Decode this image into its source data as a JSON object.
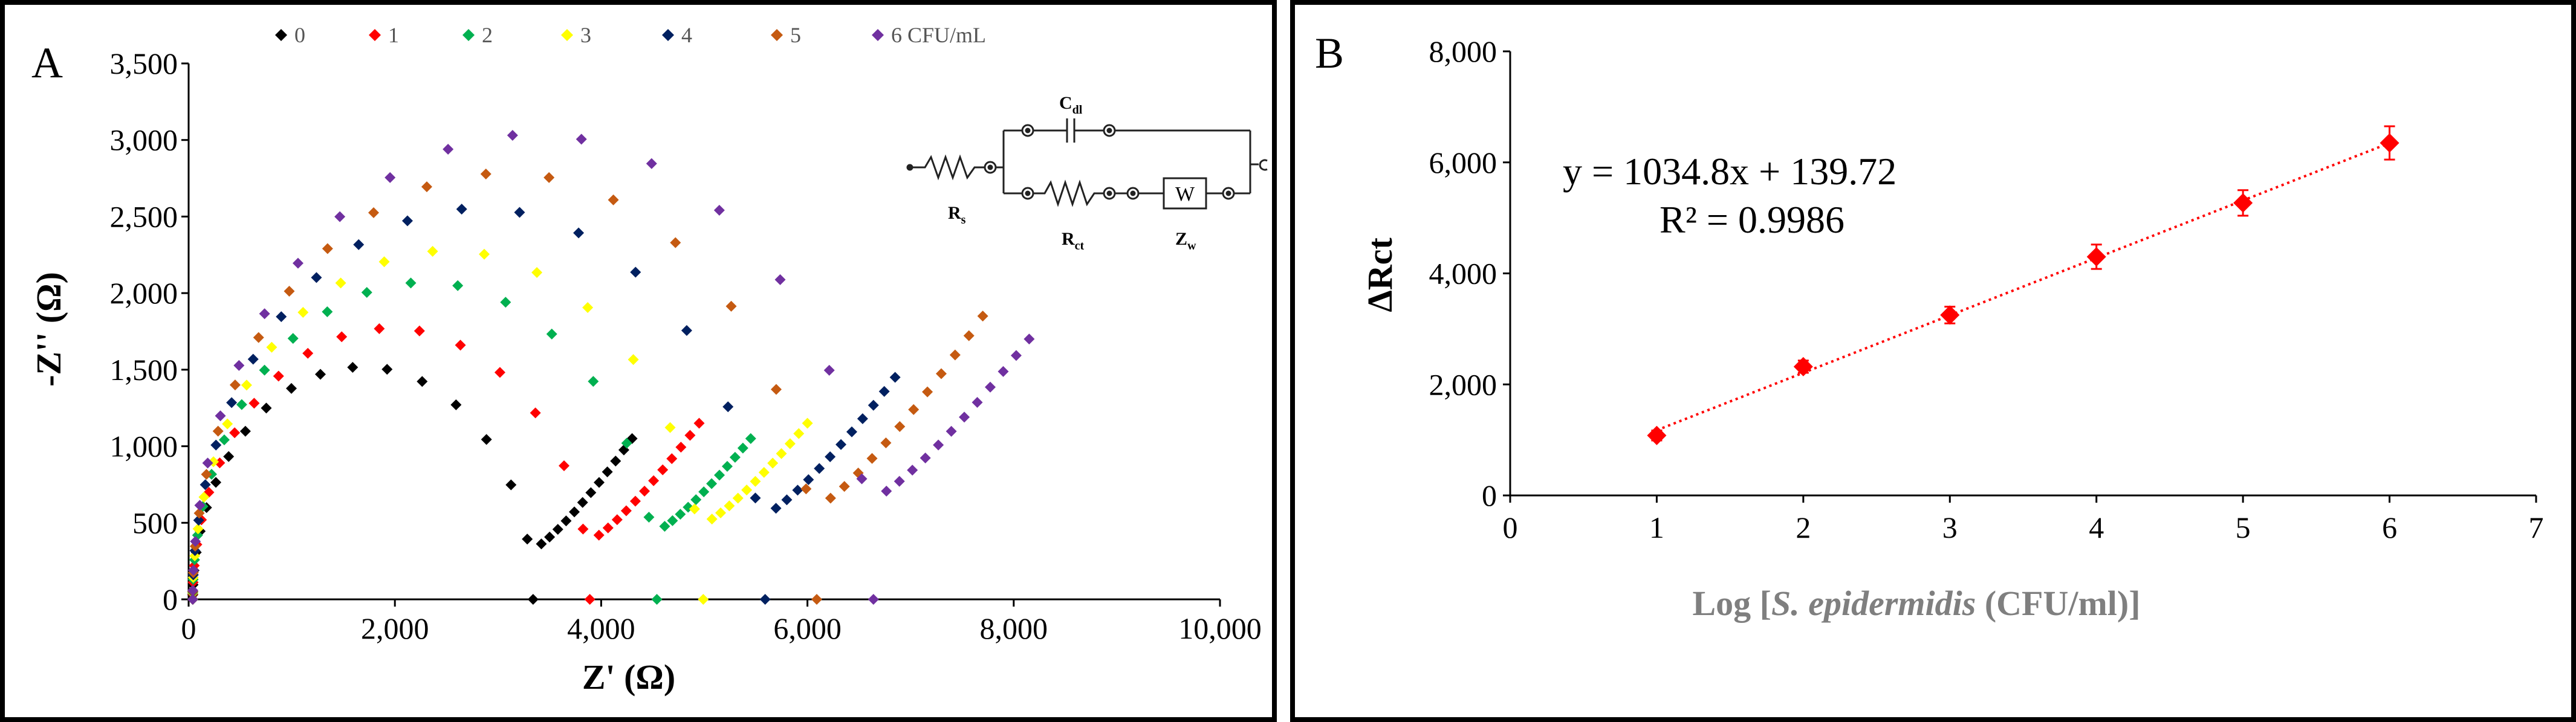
{
  "panel_a": {
    "label": "A",
    "circuit": {
      "rs": "R",
      "rs_sub": "s",
      "cdl": "C",
      "cdl_sub": "dl",
      "rct": "R",
      "rct_sub": "ct",
      "zw": "Z",
      "zw_sub": "w",
      "w_box": "W"
    }
  },
  "panel_b": {
    "label": "B",
    "equation": "y = 1034.8x + 139.72",
    "r_squared": "R² = 0.9986"
  },
  "chart_data": [
    {
      "type": "scatter",
      "xlabel": "Z' (Ω)",
      "ylabel": "-Z'' (Ω)",
      "xlim": [
        0,
        10000
      ],
      "ylim": [
        0,
        3500
      ],
      "xticks": [
        "0",
        "2,000",
        "4,000",
        "6,000",
        "8,000",
        "10,000"
      ],
      "yticks": [
        "0",
        "500",
        "1,000",
        "1,500",
        "2,000",
        "2,500",
        "3,000",
        "3,500"
      ],
      "legend_position": "top",
      "series": [
        {
          "name": "0",
          "color": "#000000",
          "rct": 3300,
          "diffusion_end": [
            4300,
            1050
          ]
        },
        {
          "name": "1",
          "color": "#ff0000",
          "rct": 3850,
          "diffusion_end": [
            4950,
            1150
          ]
        },
        {
          "name": "2",
          "color": "#00b050",
          "rct": 4500,
          "diffusion_end": [
            5450,
            1050
          ]
        },
        {
          "name": "3",
          "color": "#ffff00",
          "rct": 4950,
          "diffusion_end": [
            6000,
            1150
          ]
        },
        {
          "name": "4",
          "color": "#002060",
          "rct": 5550,
          "diffusion_end": [
            6850,
            1450
          ]
        },
        {
          "name": "5",
          "color": "#c55a11",
          "rct": 6050,
          "diffusion_end": [
            7700,
            1850
          ]
        },
        {
          "name": "6 CFU/mL",
          "color": "#7030a0",
          "rct": 6600,
          "diffusion_end": [
            8150,
            1700
          ]
        }
      ]
    },
    {
      "type": "scatter",
      "xlabel_prefix": "Log [",
      "xlabel_italic": "S. epidermidis",
      "xlabel_suffix": " (CFU/ml)]",
      "ylabel": "ΔRct",
      "xlim": [
        0,
        7
      ],
      "ylim": [
        0,
        8000
      ],
      "xticks": [
        "0",
        "1",
        "2",
        "3",
        "4",
        "5",
        "6",
        "7"
      ],
      "yticks": [
        "0",
        "2,000",
        "4,000",
        "6,000",
        "8,000"
      ],
      "marker_color": "#ff0000",
      "x": [
        1,
        2,
        3,
        4,
        5,
        6
      ],
      "y": [
        1080,
        2320,
        3250,
        4300,
        5270,
        6350
      ],
      "errors": [
        90,
        110,
        150,
        220,
        230,
        300
      ],
      "trendline": {
        "slope": 1034.8,
        "intercept": 139.72,
        "x_range": [
          1,
          6
        ],
        "style": "dotted"
      }
    }
  ]
}
